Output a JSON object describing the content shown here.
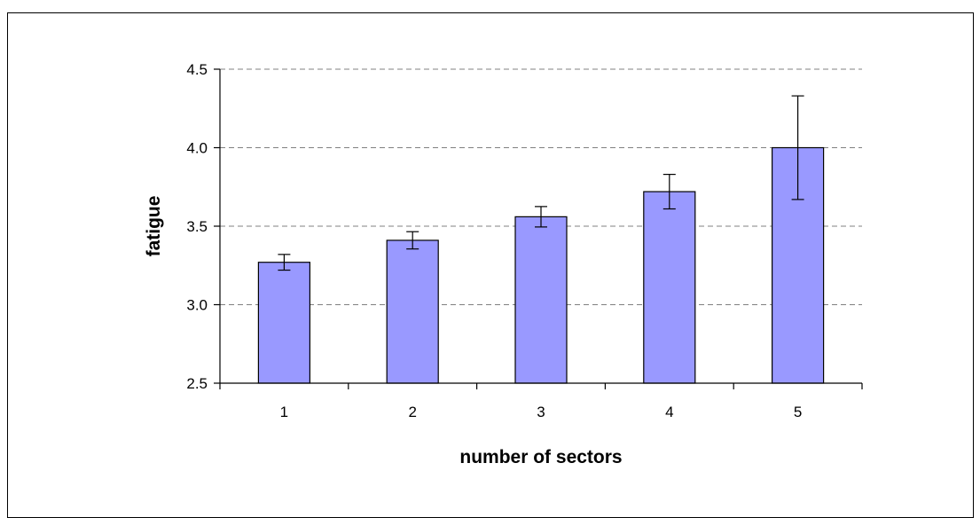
{
  "chart_data": {
    "type": "bar",
    "title": "",
    "xlabel": "number of sectors",
    "ylabel": "fatigue",
    "categories": [
      "1",
      "2",
      "3",
      "4",
      "5"
    ],
    "series": [
      {
        "values": [
          3.27,
          3.41,
          3.56,
          3.72,
          4.0
        ],
        "errors": [
          0.05,
          0.055,
          0.065,
          0.11,
          0.33
        ]
      }
    ],
    "ylim": [
      2.5,
      4.5
    ],
    "yticks": [
      "2.5",
      "3.0",
      "3.5",
      "4.0",
      "4.5"
    ],
    "grid": "horizontal dashed",
    "legend": "none",
    "colors": {
      "bar_fill": "#9999ff",
      "bar_stroke": "#000000",
      "grid": "#808080",
      "axis": "#000000"
    }
  }
}
